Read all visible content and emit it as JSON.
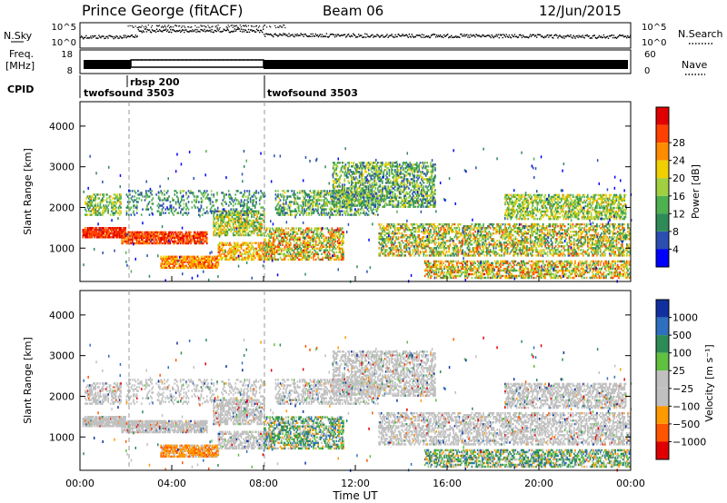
{
  "header": {
    "station": "Prince George (fitACF)",
    "beam": "Beam 06",
    "date": "12/Jun/2015"
  },
  "side_labels": {
    "nsky": "N.Sky",
    "nsearch": "N.Search",
    "freq_line1": "Freq.",
    "freq_line2": "[MHz]",
    "nave": "Nave",
    "cpid": "CPID"
  },
  "colors": {
    "power_scale": [
      "#0000ff",
      "#2a4fb0",
      "#2e8b57",
      "#4fb04f",
      "#a0d040",
      "#f0d000",
      "#ff8c00",
      "#ff4000",
      "#e00000"
    ],
    "velocity_scale": [
      "#1030a0",
      "#2f6fc0",
      "#2e8b57",
      "#60c040",
      "#c0c0c0",
      "#c0c0c0",
      "#ff9900",
      "#ff5500",
      "#e00000"
    ]
  },
  "chart_data": [
    {
      "type": "line",
      "name": "noise",
      "y_ticks_left": [
        "10^5",
        "10^0"
      ],
      "y_ticks_right": [
        "10^5",
        "10^0"
      ]
    },
    {
      "type": "line",
      "name": "frequency",
      "y_ticks_left": [
        "18",
        "8"
      ],
      "y_ticks_right": [
        "60",
        "0"
      ]
    },
    {
      "type": "table",
      "name": "cpid",
      "segments": [
        {
          "label": "twofsound 3503",
          "start_hr": 0,
          "end_hr": 2
        },
        {
          "label": "rbsp 200",
          "start_hr": 2,
          "end_hr": 8
        },
        {
          "label": "twofsound 3503",
          "start_hr": 8,
          "end_hr": 24
        }
      ]
    },
    {
      "type": "heatmap",
      "name": "power",
      "ylabel": "Slant Range [km]",
      "xlim": [
        0,
        24
      ],
      "ylim": [
        180,
        4600
      ],
      "y_ticks": [
        "1000",
        "2000",
        "3000",
        "4000"
      ],
      "colorbar_label": "Power [dB]",
      "colorbar_ticks": [
        "4",
        "8",
        "12",
        "16",
        "20",
        "24",
        "28"
      ]
    },
    {
      "type": "heatmap",
      "name": "velocity",
      "ylabel": "Slant Range [km]",
      "xlabel": "Time UT",
      "xlim": [
        0,
        24
      ],
      "ylim": [
        180,
        4600
      ],
      "x_ticks": [
        "00:00",
        "04:00",
        "08:00",
        "12:00",
        "16:00",
        "20:00",
        "00:00"
      ],
      "y_ticks": [
        "1000",
        "2000",
        "3000",
        "4000"
      ],
      "colorbar_label": "Velocity [m s⁻¹]",
      "colorbar_ticks": [
        "1000",
        "500",
        "100",
        "25",
        "−25",
        "−100",
        "−500",
        "−1000"
      ]
    }
  ]
}
